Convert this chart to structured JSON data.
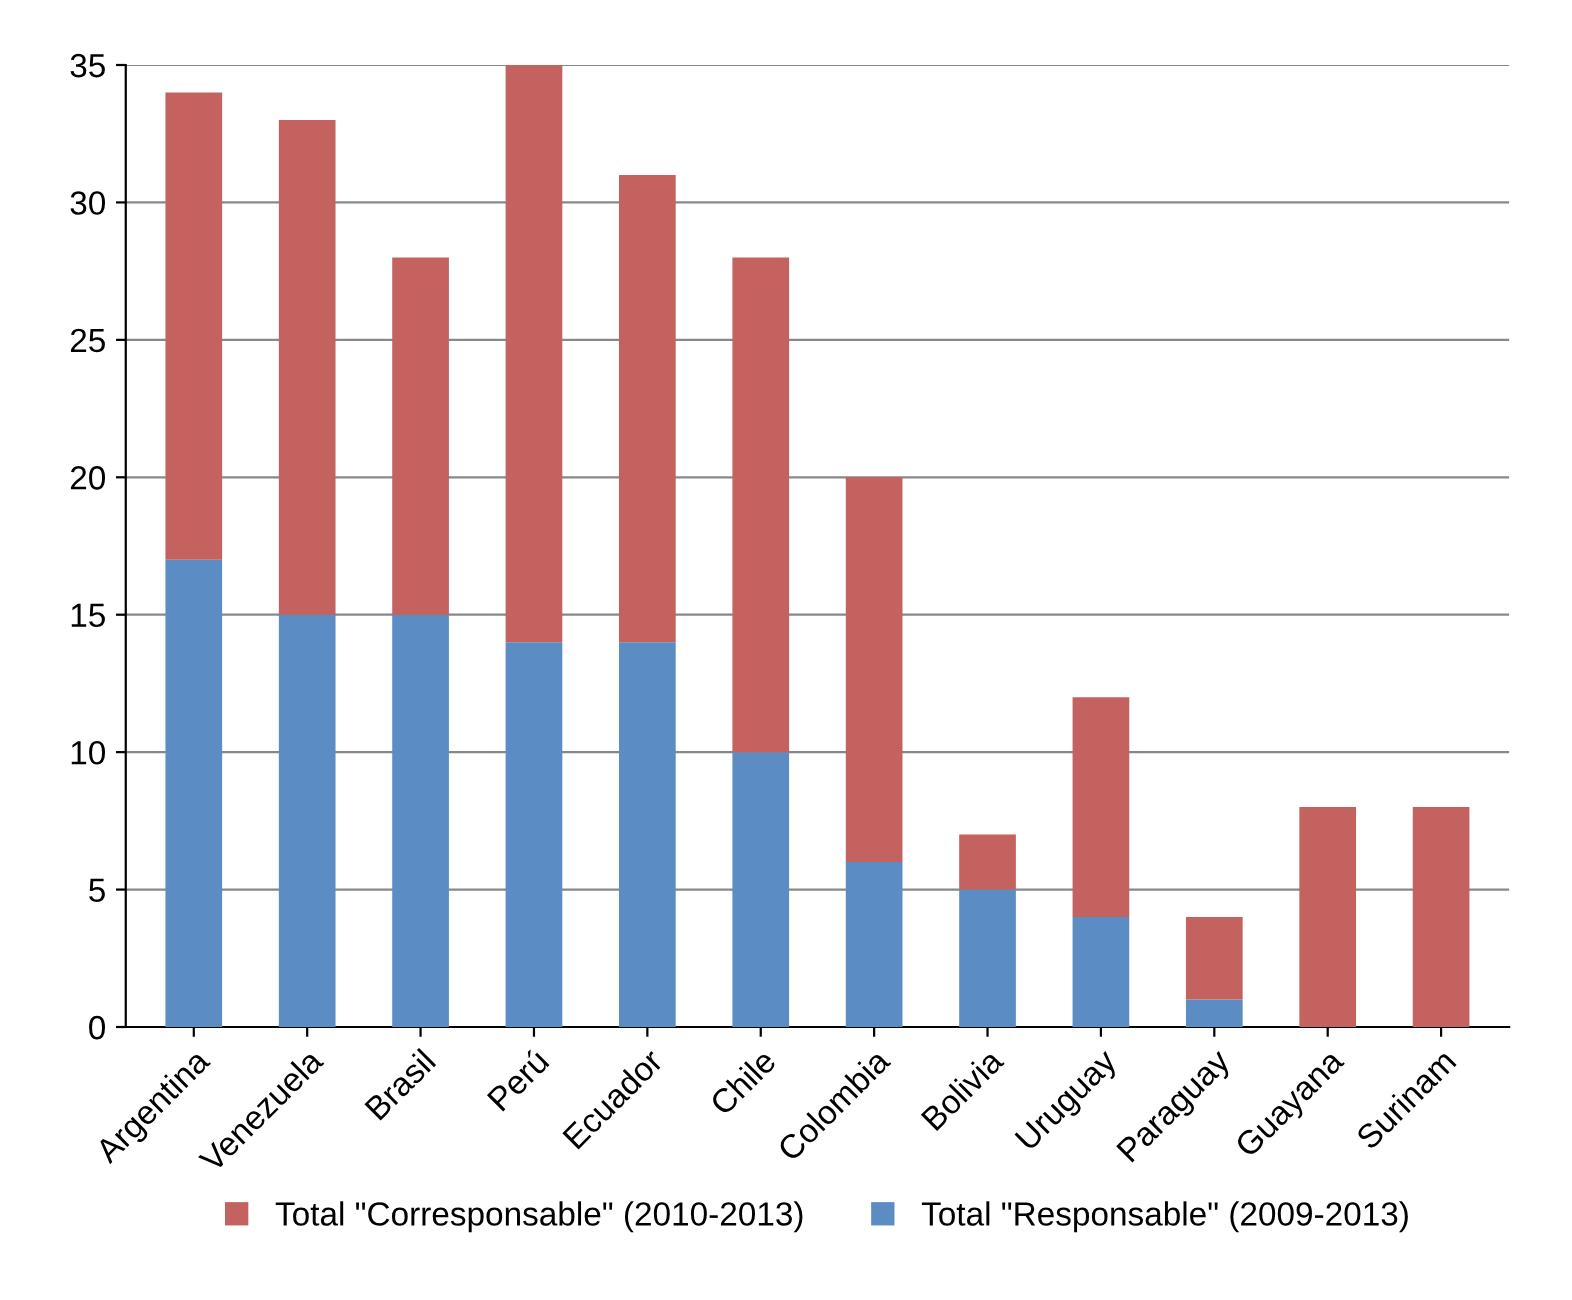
{
  "chart_data": {
    "type": "bar",
    "stacked": true,
    "categories": [
      "Argentina",
      "Venezuela",
      "Brasil",
      "Perú",
      "Ecuador",
      "Chile",
      "Colombia",
      "Bolivia",
      "Uruguay",
      "Paraguay",
      "Guayana",
      "Surinam"
    ],
    "series": [
      {
        "name": "Total \"Responsable\" (2009-2013)",
        "color": "#5b8dc4",
        "values": [
          17,
          15,
          15,
          14,
          14,
          10,
          6,
          5,
          4,
          1,
          0,
          0
        ]
      },
      {
        "name": "Total \"Corresponsable\" (2010-2013)",
        "color": "#c3625f",
        "values": [
          17,
          18,
          13,
          21,
          17,
          18,
          14,
          2,
          8,
          3,
          8,
          8
        ]
      }
    ],
    "ylim": [
      0,
      35
    ],
    "yticks": [
      0,
      5,
      10,
      15,
      20,
      25,
      30,
      35
    ],
    "grid": "y",
    "legend": "bottom"
  }
}
